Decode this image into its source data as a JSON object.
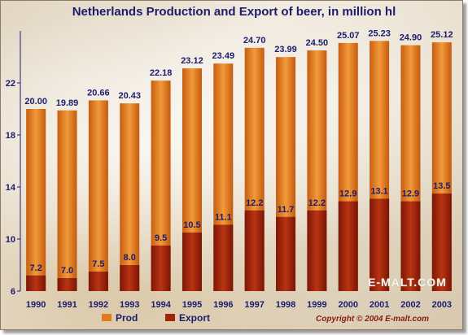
{
  "chart_data": {
    "type": "bar",
    "title": "Netherlands Production and Export of beer, in million hl",
    "categories": [
      "1990",
      "1991",
      "1992",
      "1993",
      "1994",
      "1995",
      "1996",
      "1997",
      "1998",
      "1999",
      "2000",
      "2001",
      "2002",
      "2003"
    ],
    "series": [
      {
        "name": "Prod",
        "values": [
          20.0,
          19.89,
          20.66,
          20.43,
          22.18,
          23.12,
          23.49,
          24.7,
          23.99,
          24.5,
          25.07,
          25.23,
          24.9,
          25.12
        ],
        "labels": [
          "20.00",
          "19.89",
          "20.66",
          "20.43",
          "22.18",
          "23.12",
          "23.49",
          "24.70",
          "23.99",
          "24.50",
          "25.07",
          "25.23",
          "24.90",
          "25.12"
        ],
        "color": "#e07a1c"
      },
      {
        "name": "Export",
        "values": [
          7.2,
          7.0,
          7.5,
          8.0,
          9.5,
          10.5,
          11.1,
          12.2,
          11.7,
          12.2,
          12.9,
          13.1,
          12.9,
          13.5
        ],
        "labels": [
          "7.2",
          "7.0",
          "7.5",
          "8.0",
          "9.5",
          "10.5",
          "11.1",
          "12.2",
          "11.7",
          "12.2",
          "12.9",
          "13.1",
          "12.9",
          "13.5"
        ],
        "color": "#a1250c"
      }
    ],
    "yticks": [
      "6",
      "10",
      "14",
      "18",
      "22"
    ],
    "ylim": [
      6,
      26
    ],
    "xlabel": "",
    "ylabel": "",
    "grid": false,
    "legend": "bottom-left"
  },
  "watermark": "E-MALT.COM",
  "copyright": "Copyright © 2004 E-malt.com"
}
